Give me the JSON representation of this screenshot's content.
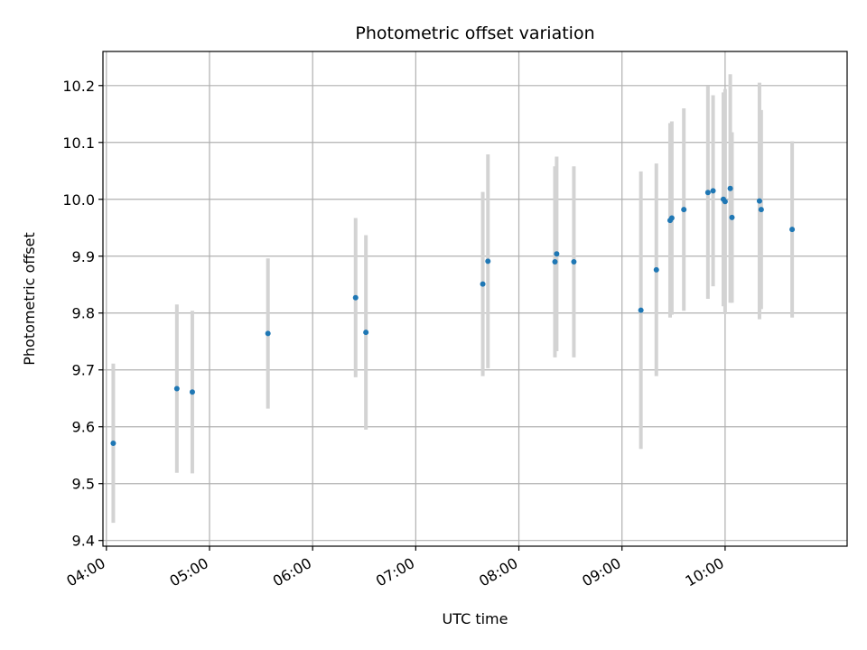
{
  "chart_data": {
    "type": "scatter",
    "title": "Photometric offset variation",
    "xlabel": "UTC time",
    "ylabel": "Photometric offset",
    "x_ticks": [
      "04:00",
      "05:00",
      "06:00",
      "07:00",
      "08:00",
      "09:00",
      "10:00"
    ],
    "y_ticks": [
      "9.4",
      "9.5",
      "9.6",
      "9.7",
      "9.8",
      "9.9",
      "10.0",
      "10.1",
      "10.2"
    ],
    "xlim": [
      "03:58",
      "11:11"
    ],
    "ylim": [
      9.39,
      10.26
    ],
    "grid": true,
    "legend": "none",
    "colors": {
      "point": "#1f77b4",
      "errorbar": "#d3d3d3",
      "grid": "#b0b0b0"
    },
    "points": [
      {
        "x": "04:04",
        "y": 9.571,
        "err": 0.14
      },
      {
        "x": "04:41",
        "y": 9.667,
        "err": 0.148
      },
      {
        "x": "04:50",
        "y": 9.661,
        "err": 0.143
      },
      {
        "x": "05:34",
        "y": 9.764,
        "err": 0.132
      },
      {
        "x": "06:25",
        "y": 9.827,
        "err": 0.14
      },
      {
        "x": "06:31",
        "y": 9.766,
        "err": 0.171
      },
      {
        "x": "07:39",
        "y": 9.851,
        "err": 0.162
      },
      {
        "x": "07:42",
        "y": 9.891,
        "err": 0.188
      },
      {
        "x": "08:21",
        "y": 9.89,
        "err": 0.168
      },
      {
        "x": "08:22",
        "y": 9.904,
        "err": 0.171
      },
      {
        "x": "08:32",
        "y": 9.89,
        "err": 0.168
      },
      {
        "x": "09:11",
        "y": 9.805,
        "err": 0.244
      },
      {
        "x": "09:20",
        "y": 9.876,
        "err": 0.187
      },
      {
        "x": "09:28",
        "y": 9.963,
        "err": 0.171
      },
      {
        "x": "09:29",
        "y": 9.967,
        "err": 0.17
      },
      {
        "x": "09:36",
        "y": 9.982,
        "err": 0.178
      },
      {
        "x": "09:50",
        "y": 10.012,
        "err": 0.187
      },
      {
        "x": "09:53",
        "y": 10.015,
        "err": 0.168
      },
      {
        "x": "09:59",
        "y": 10.0,
        "err": 0.188
      },
      {
        "x": "10:00",
        "y": 9.996,
        "err": 0.198
      },
      {
        "x": "10:03",
        "y": 10.019,
        "err": 0.201
      },
      {
        "x": "10:04",
        "y": 9.968,
        "err": 0.15
      },
      {
        "x": "10:20",
        "y": 9.997,
        "err": 0.208
      },
      {
        "x": "10:21",
        "y": 9.982,
        "err": 0.175
      },
      {
        "x": "10:39",
        "y": 9.947,
        "err": 0.155
      }
    ]
  }
}
